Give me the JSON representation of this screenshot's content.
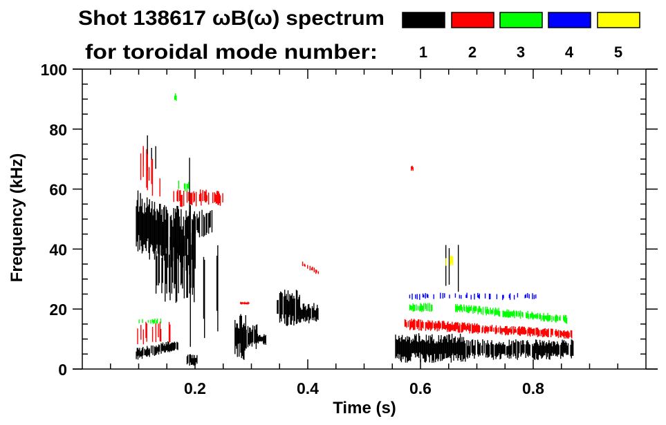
{
  "chart_data": {
    "type": "heatmap",
    "title_line1": "Shot 138617 ωB(ω) spectrum",
    "title_line2": "for toroidal mode number:",
    "xlabel": "Time (s)",
    "ylabel": "Frequency (kHz)",
    "xlim": [
      0,
      1.0
    ],
    "ylim": [
      0,
      100
    ],
    "xticks": [
      0.2,
      0.4,
      0.6,
      0.8
    ],
    "xtick_labels": [
      "0.2",
      "0.4",
      "0.6",
      "0.8"
    ],
    "yticks": [
      0,
      20,
      40,
      60,
      80,
      100
    ],
    "ytick_labels": [
      "0",
      "20",
      "40",
      "60",
      "80",
      "100"
    ],
    "legend": [
      {
        "label": "1",
        "color": "#000000"
      },
      {
        "label": "2",
        "color": "#ff0000"
      },
      {
        "label": "3",
        "color": "#00ff00"
      },
      {
        "label": "4",
        "color": "#0000ff"
      },
      {
        "label": "5",
        "color": "#ffff00"
      }
    ],
    "features": [
      {
        "mode": 1,
        "t": [
          0.095,
          0.2
        ],
        "f": [
          38,
          60
        ],
        "f_end": [
          30,
          52
        ],
        "density": 0.95
      },
      {
        "mode": 1,
        "t": [
          0.13,
          0.2
        ],
        "f": [
          22,
          45
        ],
        "density": 0.5
      },
      {
        "mode": 1,
        "t": [
          0.185,
          0.23
        ],
        "f": [
          42,
          52
        ],
        "f_end": [
          45,
          54
        ],
        "density": 0.8
      },
      {
        "mode": 1,
        "t": [
          0.095,
          0.17
        ],
        "f": [
          3,
          7
        ],
        "f_end": [
          6,
          10
        ],
        "density": 0.9
      },
      {
        "mode": 1,
        "t": [
          0.1,
          0.13
        ],
        "f": [
          65,
          78
        ],
        "density": 0.4
      },
      {
        "mode": 1,
        "t": [
          0.188,
          0.192
        ],
        "f": [
          5,
          80
        ],
        "density": 0.6
      },
      {
        "mode": 1,
        "t": [
          0.213,
          0.217
        ],
        "f": [
          10,
          48
        ],
        "density": 0.6
      },
      {
        "mode": 1,
        "t": [
          0.238,
          0.242
        ],
        "f": [
          2,
          55
        ],
        "density": 0.6
      },
      {
        "mode": 1,
        "t": [
          0.185,
          0.21
        ],
        "f": [
          1,
          5
        ],
        "density": 0.7
      },
      {
        "mode": 1,
        "t": [
          0.27,
          0.29
        ],
        "f": [
          3,
          19
        ],
        "density": 1.0
      },
      {
        "mode": 1,
        "t": [
          0.29,
          0.31
        ],
        "f": [
          6,
          15
        ],
        "density": 0.9
      },
      {
        "mode": 1,
        "t": [
          0.31,
          0.325
        ],
        "f": [
          8,
          12
        ],
        "density": 0.9
      },
      {
        "mode": 1,
        "t": [
          0.345,
          0.385
        ],
        "f": [
          14,
          27
        ],
        "density": 0.95
      },
      {
        "mode": 1,
        "t": [
          0.385,
          0.42
        ],
        "f": [
          15,
          22
        ],
        "density": 0.9
      },
      {
        "mode": 1,
        "t": [
          0.555,
          0.68
        ],
        "f": [
          2,
          12
        ],
        "density": 1.0
      },
      {
        "mode": 1,
        "t": [
          0.68,
          0.87
        ],
        "f": [
          3,
          10
        ],
        "density": 0.9
      },
      {
        "mode": 1,
        "t": [
          0.625,
          0.675
        ],
        "f": [
          24,
          42
        ],
        "density": 0.12
      },
      {
        "mode": 2,
        "t": [
          0.1,
          0.14
        ],
        "f": [
          60,
          78
        ],
        "f_end": [
          55,
          65
        ],
        "density": 0.35
      },
      {
        "mode": 2,
        "t": [
          0.16,
          0.25
        ],
        "f": [
          54,
          60
        ],
        "density": 0.6
      },
      {
        "mode": 2,
        "t": [
          0.09,
          0.16
        ],
        "f": [
          8,
          16
        ],
        "density": 0.35
      },
      {
        "mode": 2,
        "t": [
          0.28,
          0.295
        ],
        "f": [
          21.5,
          22.5
        ],
        "density": 1.0
      },
      {
        "mode": 2,
        "t": [
          0.39,
          0.42
        ],
        "f": [
          34,
          36
        ],
        "f_end": [
          31,
          33
        ],
        "density": 0.6
      },
      {
        "mode": 2,
        "t": [
          0.57,
          0.87
        ],
        "f": [
          13,
          17
        ],
        "f_end": [
          10,
          13
        ],
        "density": 0.85
      },
      {
        "mode": 2,
        "t": [
          0.583,
          0.587
        ],
        "f": [
          66,
          68
        ],
        "density": 1.0
      },
      {
        "mode": 3,
        "t": [
          0.58,
          0.62
        ],
        "f": [
          19,
          22
        ],
        "density": 0.7
      },
      {
        "mode": 3,
        "t": [
          0.66,
          0.86
        ],
        "f": [
          19,
          22
        ],
        "f_end": [
          15,
          18
        ],
        "density": 0.8
      },
      {
        "mode": 3,
        "t": [
          0.1,
          0.14
        ],
        "f": [
          15,
          17
        ],
        "density": 0.3
      },
      {
        "mode": 3,
        "t": [
          0.17,
          0.19
        ],
        "f": [
          59,
          63
        ],
        "density": 0.4
      },
      {
        "mode": 3,
        "t": [
          0.163,
          0.166
        ],
        "f": [
          89,
          92
        ],
        "density": 1.0
      },
      {
        "mode": 4,
        "t": [
          0.58,
          0.85
        ],
        "f": [
          23,
          25.5
        ],
        "density": 0.25
      },
      {
        "mode": 5,
        "t": [
          0.643,
          0.657
        ],
        "f": [
          34,
          38
        ],
        "density": 0.5
      }
    ]
  }
}
